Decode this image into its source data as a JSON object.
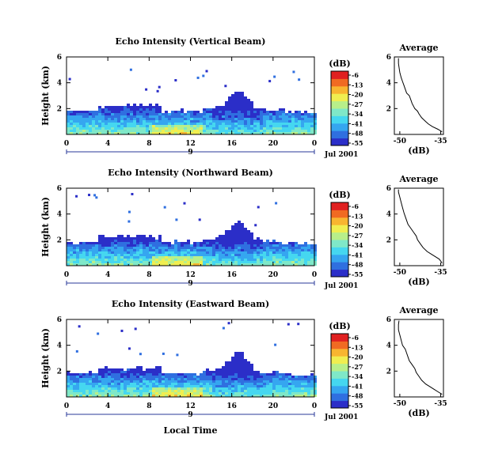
{
  "chart_data": [
    {
      "type": "heatmap",
      "title": "Echo Intensity (Vertical Beam)",
      "ylabel": "Height (km)",
      "x_ticks": [
        "0",
        "4",
        "8",
        "12",
        "16",
        "20",
        "0"
      ],
      "y_ticks": [
        "6",
        "4",
        "2"
      ],
      "xlim": [
        0,
        24
      ],
      "ylim": [
        0,
        6
      ],
      "day_label": "9",
      "date_label": "Jul 2001",
      "colorbar": {
        "unit": "(dB)",
        "ticks": [
          "-6",
          "-13",
          "-20",
          "-27",
          "-34",
          "-41",
          "-48",
          "-55"
        ]
      },
      "average_panel": {
        "title": "Average",
        "xlabel": "(dB)",
        "x_ticks": [
          "-50",
          "-35"
        ],
        "y_ticks": [
          "6",
          "4",
          "2"
        ],
        "xlim": [
          -52,
          -34
        ],
        "ylim": [
          0,
          6
        ],
        "profile": [
          [
            -34.5,
            0.2
          ],
          [
            -36,
            0.4
          ],
          [
            -38,
            0.6
          ],
          [
            -39.5,
            0.8
          ],
          [
            -40.5,
            1.0
          ],
          [
            -42,
            1.3
          ],
          [
            -43,
            1.6
          ],
          [
            -43.5,
            1.8
          ],
          [
            -44.5,
            2.0
          ],
          [
            -45.5,
            2.4
          ],
          [
            -46,
            2.7
          ],
          [
            -46.5,
            3.0
          ],
          [
            -47.5,
            3.2
          ],
          [
            -48,
            3.5
          ],
          [
            -48.5,
            3.8
          ],
          [
            -49,
            4.1
          ],
          [
            -49.5,
            4.4
          ],
          [
            -50,
            4.8
          ],
          [
            -50.3,
            5.2
          ],
          [
            -50.5,
            5.5
          ],
          [
            -50.5,
            5.9
          ]
        ]
      }
    },
    {
      "type": "heatmap",
      "title": "Echo Intensity (Northward Beam)",
      "ylabel": "Height (km)",
      "x_ticks": [
        "0",
        "4",
        "8",
        "12",
        "16",
        "20",
        "0"
      ],
      "y_ticks": [
        "6",
        "4",
        "2"
      ],
      "xlim": [
        0,
        24
      ],
      "ylim": [
        0,
        6
      ],
      "day_label": "9",
      "date_label": "Jul 2001",
      "colorbar": {
        "unit": "(dB)",
        "ticks": [
          "-6",
          "-13",
          "-20",
          "-27",
          "-34",
          "-41",
          "-48",
          "-55"
        ]
      },
      "average_panel": {
        "title": "Average",
        "xlabel": "(dB)",
        "x_ticks": [
          "-50",
          "-35"
        ],
        "y_ticks": [
          "6",
          "4",
          "2"
        ],
        "xlim": [
          -52,
          -34
        ],
        "ylim": [
          0,
          6
        ],
        "profile": [
          [
            -34.5,
            0.2
          ],
          [
            -35.5,
            0.5
          ],
          [
            -37,
            0.7
          ],
          [
            -38.5,
            0.9
          ],
          [
            -40,
            1.1
          ],
          [
            -41.5,
            1.4
          ],
          [
            -42.5,
            1.7
          ],
          [
            -43.5,
            2.0
          ],
          [
            -44,
            2.3
          ],
          [
            -45,
            2.6
          ],
          [
            -46,
            2.9
          ],
          [
            -47,
            3.2
          ],
          [
            -47.5,
            3.5
          ],
          [
            -48,
            3.8
          ],
          [
            -48.5,
            4.1
          ],
          [
            -49,
            4.5
          ],
          [
            -49.5,
            4.9
          ],
          [
            -50,
            5.3
          ],
          [
            -50.5,
            5.7
          ],
          [
            -50.5,
            5.9
          ]
        ]
      }
    },
    {
      "type": "heatmap",
      "title": "Echo Intensity (Eastward Beam)",
      "ylabel": "Height (km)",
      "xlabel": "Local Time",
      "x_ticks": [
        "0",
        "4",
        "8",
        "12",
        "16",
        "20",
        "0"
      ],
      "y_ticks": [
        "6",
        "4",
        "2"
      ],
      "xlim": [
        0,
        24
      ],
      "ylim": [
        0,
        6
      ],
      "day_label": "9",
      "date_label": "Jul 2001",
      "colorbar": {
        "unit": "(dB)",
        "ticks": [
          "-6",
          "-13",
          "-20",
          "-27",
          "-34",
          "-41",
          "-48",
          "-55"
        ]
      },
      "average_panel": {
        "title": "Average",
        "xlabel": "(dB)",
        "x_ticks": [
          "-50",
          "-35"
        ],
        "y_ticks": [
          "6",
          "4",
          "2"
        ],
        "xlim": [
          -52,
          -34
        ],
        "ylim": [
          0,
          6
        ],
        "profile": [
          [
            -34.5,
            0.2
          ],
          [
            -36,
            0.4
          ],
          [
            -37.5,
            0.6
          ],
          [
            -39,
            0.8
          ],
          [
            -40.5,
            1.0
          ],
          [
            -42,
            1.3
          ],
          [
            -43,
            1.6
          ],
          [
            -44,
            1.9
          ],
          [
            -44.5,
            2.2
          ],
          [
            -45.5,
            2.5
          ],
          [
            -46.5,
            2.8
          ],
          [
            -47,
            3.1
          ],
          [
            -47.5,
            3.4
          ],
          [
            -48,
            3.7
          ],
          [
            -49,
            4.0
          ],
          [
            -49.5,
            4.4
          ],
          [
            -50,
            4.8
          ],
          [
            -50.5,
            5.2
          ],
          [
            -50.5,
            5.6
          ],
          [
            -50.3,
            5.9
          ]
        ]
      }
    }
  ],
  "palette": [
    "#2b2ec8",
    "#2f6fe0",
    "#35a6f0",
    "#45d7f0",
    "#7fe8c8",
    "#b8ef8a",
    "#f0ee50",
    "#f8b530",
    "#f06a22",
    "#e02020"
  ]
}
